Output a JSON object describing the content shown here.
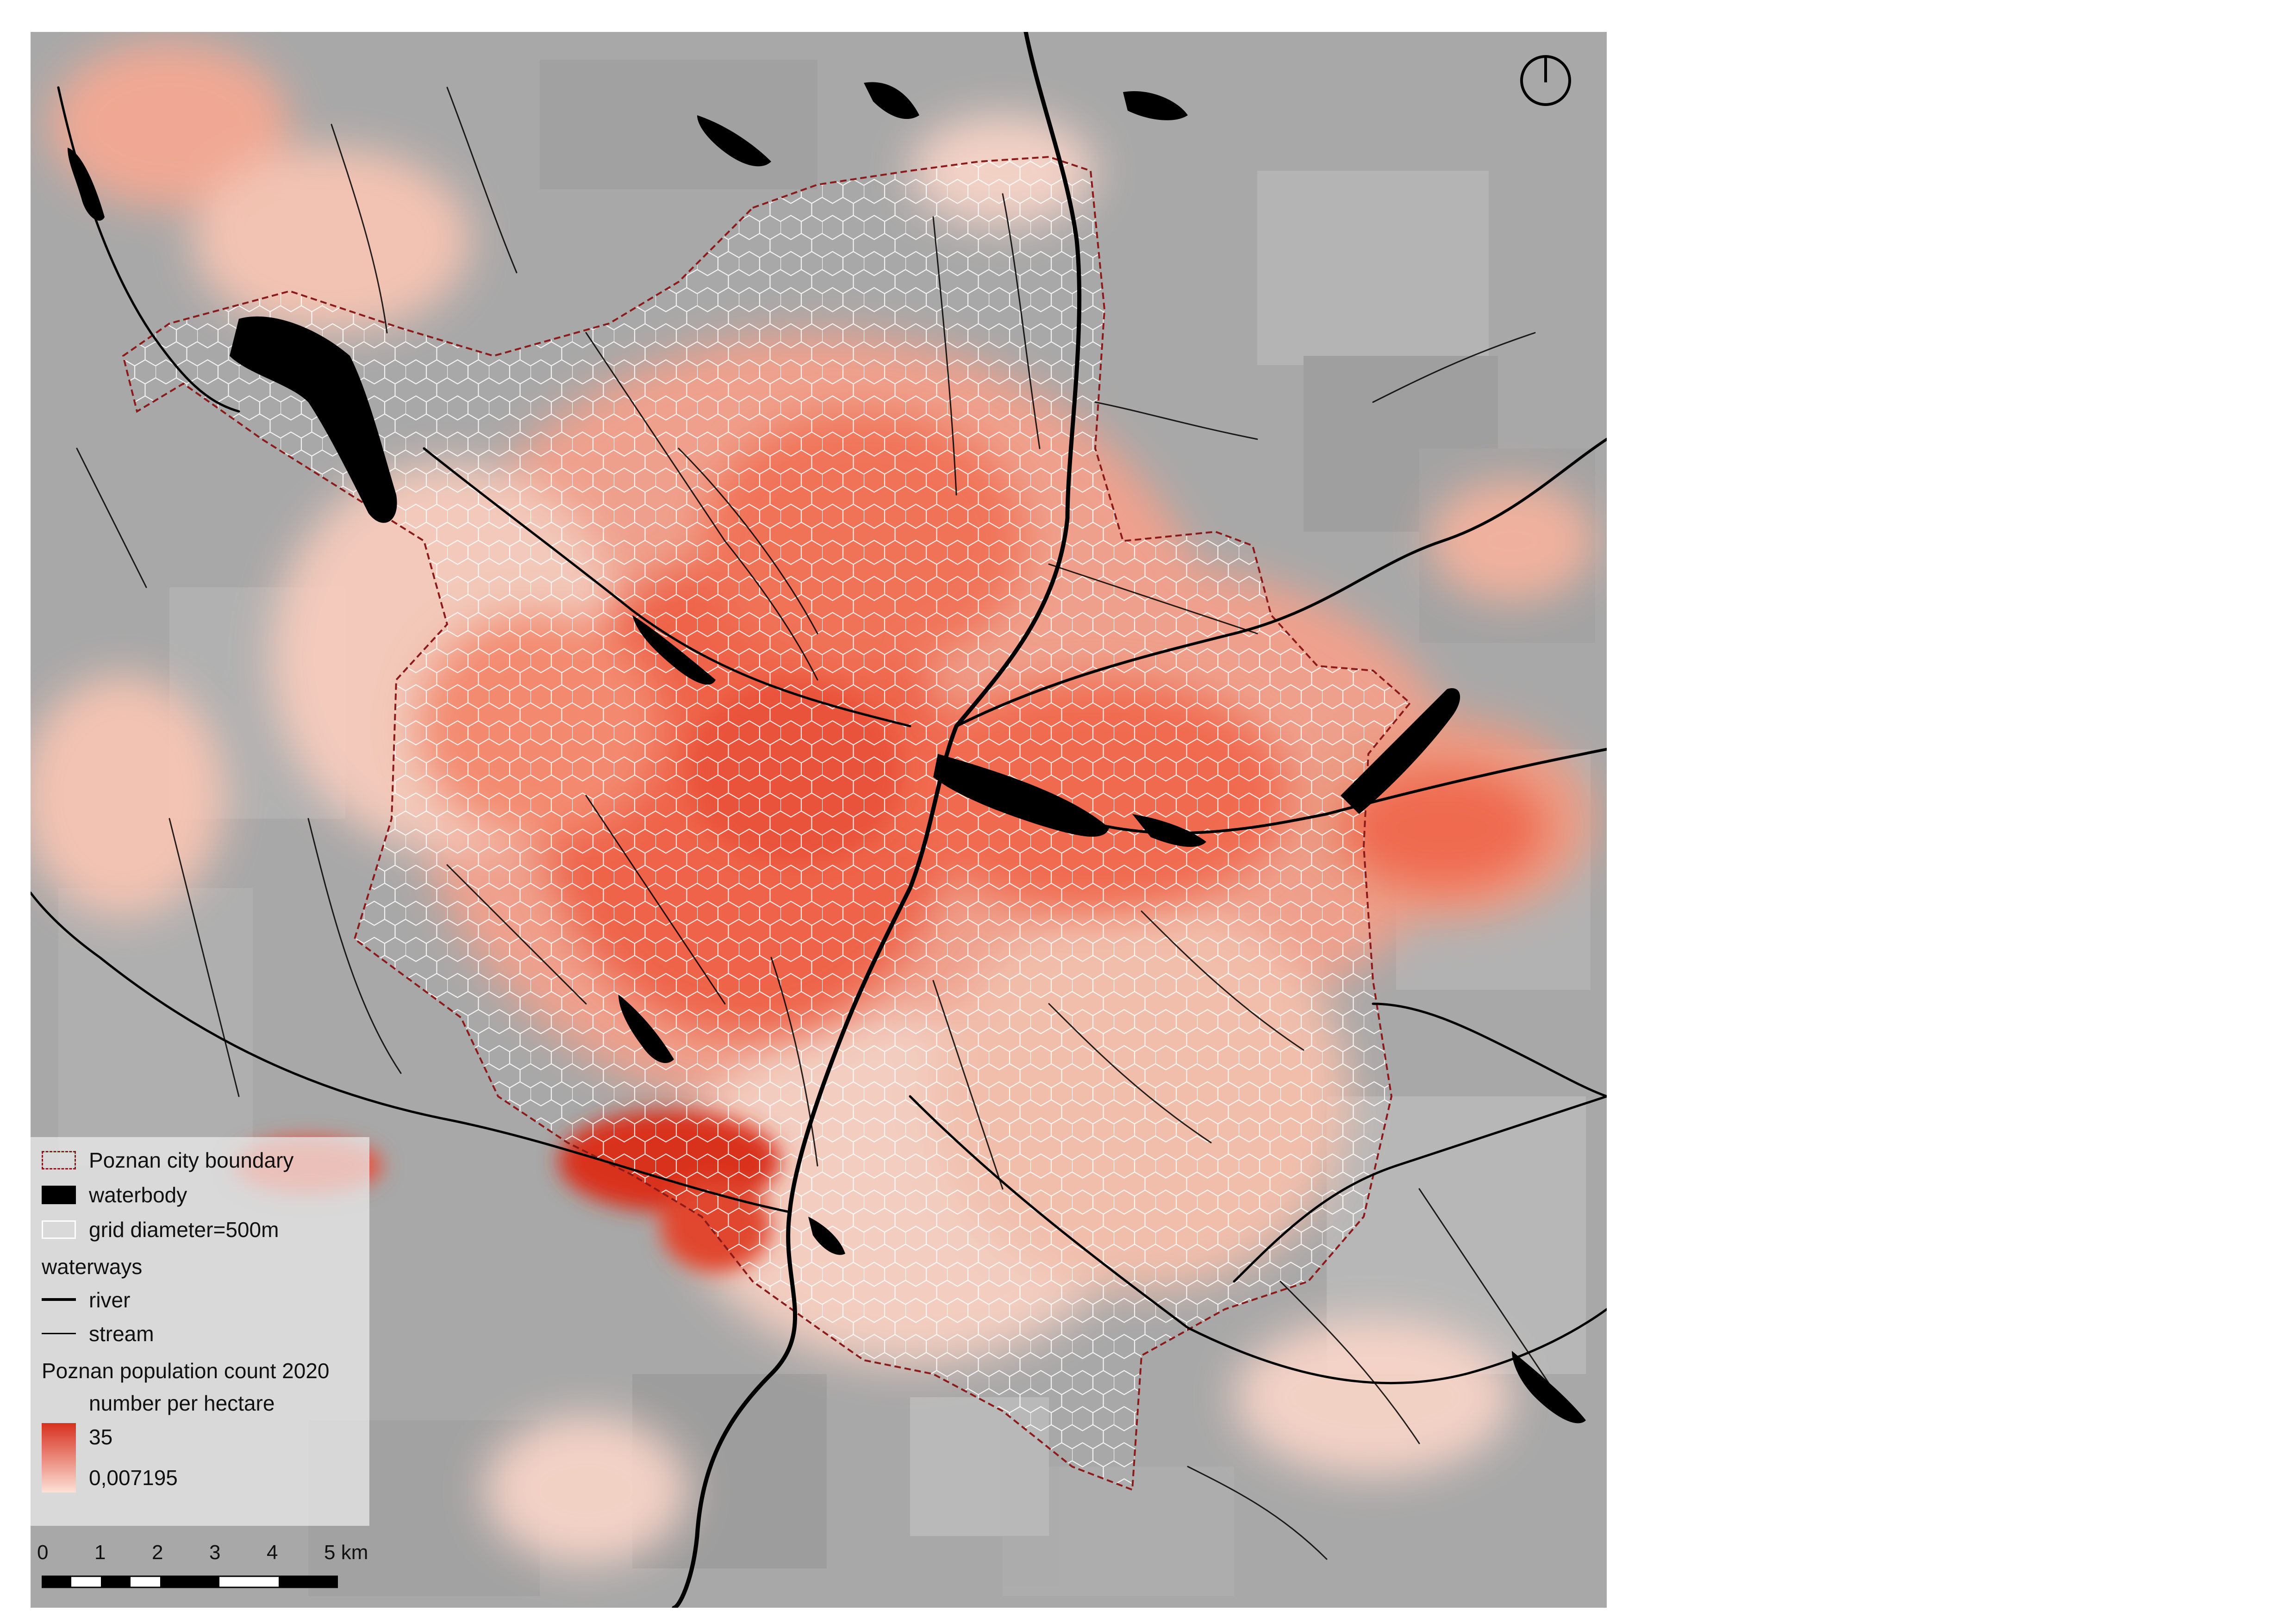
{
  "legend": {
    "boundary_label": "Poznan city boundary",
    "waterbody_label": "waterbody",
    "grid_label": "grid diameter=500m",
    "waterways_title": "waterways",
    "river_label": "river",
    "stream_label": "stream",
    "population_title": "Poznan population count 2020",
    "population_subtitle": "number per hectare",
    "population_max": "35",
    "population_min": "0,007195"
  },
  "scale_bar": {
    "ticks": [
      "0",
      "1",
      "2",
      "3",
      "4",
      "5 km"
    ]
  },
  "icons": {
    "north_arrow": "north-arrow-icon"
  },
  "colors": {
    "background_imagery": "#a9a9a9",
    "density_high": "#d7301f",
    "density_mid": "#f46a50",
    "density_low": "#fde0d6",
    "boundary": "#8b1a1a",
    "waterbody": "#000000",
    "grid": "#ffffff"
  }
}
